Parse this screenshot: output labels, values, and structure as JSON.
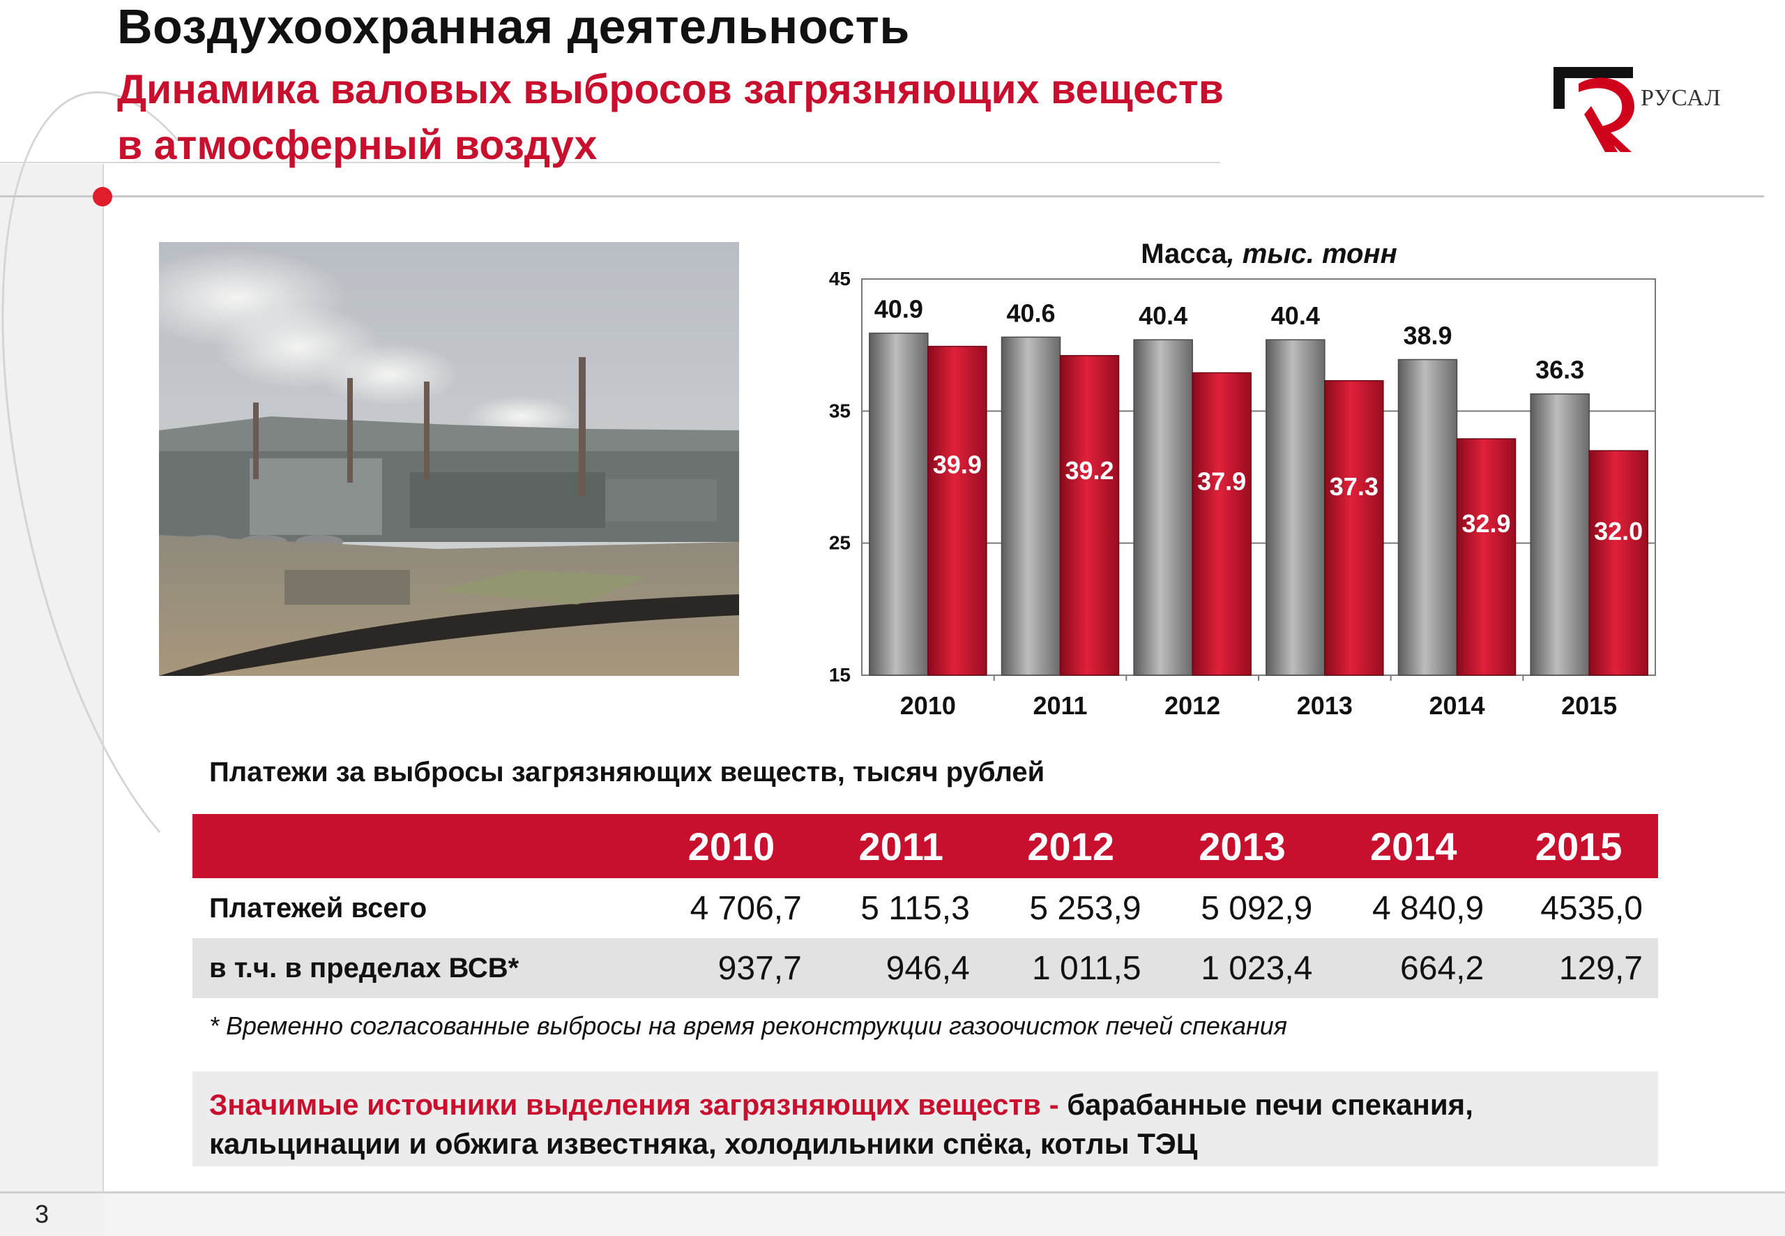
{
  "header": {
    "title": "Воздухоохранная деятельность",
    "subtitle_line1": "Динамика валовых выбросов загрязняющих веществ",
    "subtitle_line2": "в  атмосферный воздух"
  },
  "logo": {
    "text": "РУСАЛ"
  },
  "colors": {
    "accent_red": "#c8102e",
    "bar_gray": "#8c8c8c",
    "bar_red": "#c8102e"
  },
  "chart_data": {
    "type": "bar",
    "title": "Масса",
    "title_unit": ", тыс. тонн",
    "categories": [
      "2010",
      "2011",
      "2012",
      "2013",
      "2014",
      "2015"
    ],
    "series": [
      {
        "values": [
          40.9,
          40.6,
          40.4,
          40.4,
          38.9,
          36.3
        ],
        "labels": [
          "40.9",
          "40.6",
          "40.4",
          "40.4",
          "38.9",
          "36.3"
        ],
        "color": "#8c8c8c"
      },
      {
        "values": [
          39.9,
          39.2,
          37.9,
          37.3,
          32.9,
          32.0
        ],
        "labels": [
          "39.9",
          "39.2",
          "37.9",
          "37.3",
          "32.9",
          "32.0"
        ],
        "color": "#c8102e"
      }
    ],
    "ylim": [
      15,
      45
    ],
    "yticks": [
      "15",
      "25",
      "35",
      "45"
    ],
    "ytick_values": [
      15,
      25,
      35,
      45
    ],
    "grid": true
  },
  "payments": {
    "heading": "Платежи за выбросы загрязняющих веществ, тысяч рублей",
    "years": [
      "2010",
      "2011",
      "2012",
      "2013",
      "2014",
      "2015"
    ],
    "rows": [
      {
        "label": "Платежей всего",
        "values": [
          "4 706,7",
          "5 115,3",
          "5 253,9",
          "5 092,9",
          "4 840,9",
          "4535,0"
        ]
      },
      {
        "label": "в т.ч. в пределах ВСВ*",
        "values": [
          "937,7",
          "946,4",
          "1 011,5",
          "1 023,4",
          "664,2",
          "129,7"
        ]
      }
    ],
    "footnote": "* Временно согласованные выбросы на время реконструкции газоочисток печей спекания"
  },
  "sources": {
    "lead": "Значимые источники выделения загрязняющих веществ -",
    "text": " барабанные печи спекания, кальцинации и обжига известняка,  холодильники спёка,  котлы ТЭЦ"
  },
  "page_number": "3"
}
